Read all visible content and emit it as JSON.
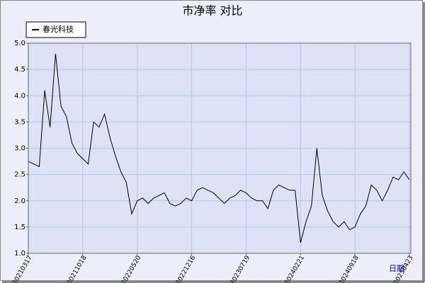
{
  "chart_data": {
    "type": "line",
    "title": "市净率 对比",
    "x_label": "日期",
    "categories": [
      "20210317",
      null,
      null,
      null,
      null,
      null,
      null,
      null,
      null,
      null,
      "20211018",
      null,
      null,
      null,
      null,
      null,
      null,
      null,
      null,
      null,
      "20220520",
      null,
      null,
      null,
      null,
      null,
      null,
      null,
      null,
      null,
      "20221216",
      null,
      null,
      null,
      null,
      null,
      null,
      null,
      null,
      null,
      "20230719",
      null,
      null,
      null,
      null,
      null,
      null,
      null,
      null,
      null,
      "20240221",
      null,
      null,
      null,
      null,
      null,
      null,
      null,
      null,
      null,
      "20240918",
      null,
      null,
      null,
      null,
      null,
      null,
      null,
      null,
      null,
      "20250423"
    ],
    "series": [
      {
        "name": "春光科技",
        "color": "#000000",
        "values": [
          2.75,
          2.7,
          2.65,
          4.1,
          3.4,
          4.8,
          3.8,
          3.6,
          3.1,
          2.9,
          2.8,
          2.7,
          3.5,
          3.4,
          3.65,
          3.2,
          2.85,
          2.55,
          2.35,
          1.75,
          2.0,
          2.05,
          1.95,
          2.05,
          2.1,
          2.15,
          1.95,
          1.9,
          1.95,
          2.05,
          2.0,
          2.2,
          2.25,
          2.2,
          2.15,
          2.05,
          1.95,
          2.05,
          2.1,
          2.2,
          2.15,
          2.05,
          2.0,
          2.0,
          1.85,
          2.2,
          2.3,
          2.25,
          2.2,
          2.2,
          1.2,
          1.6,
          1.9,
          3.0,
          2.1,
          1.8,
          1.6,
          1.5,
          1.6,
          1.45,
          1.5,
          1.75,
          1.9,
          2.3,
          2.2,
          2.0,
          2.2,
          2.45,
          2.4,
          2.55,
          2.4
        ]
      }
    ],
    "ylim": [
      1,
      5
    ],
    "yticks": [
      {
        "value": 1,
        "label": "1.0"
      },
      {
        "value": 1.5,
        "label": "1.5"
      },
      {
        "value": 2,
        "label": "2.0"
      },
      {
        "value": 2.5,
        "label": "2.5"
      },
      {
        "value": 3,
        "label": "3.0"
      },
      {
        "value": 3.5,
        "label": "3.5"
      },
      {
        "value": 4,
        "label": "4.0"
      },
      {
        "value": 4.5,
        "label": "4.5"
      },
      {
        "value": 5,
        "label": "5.0"
      }
    ],
    "grid": true,
    "legend": "top-left"
  }
}
